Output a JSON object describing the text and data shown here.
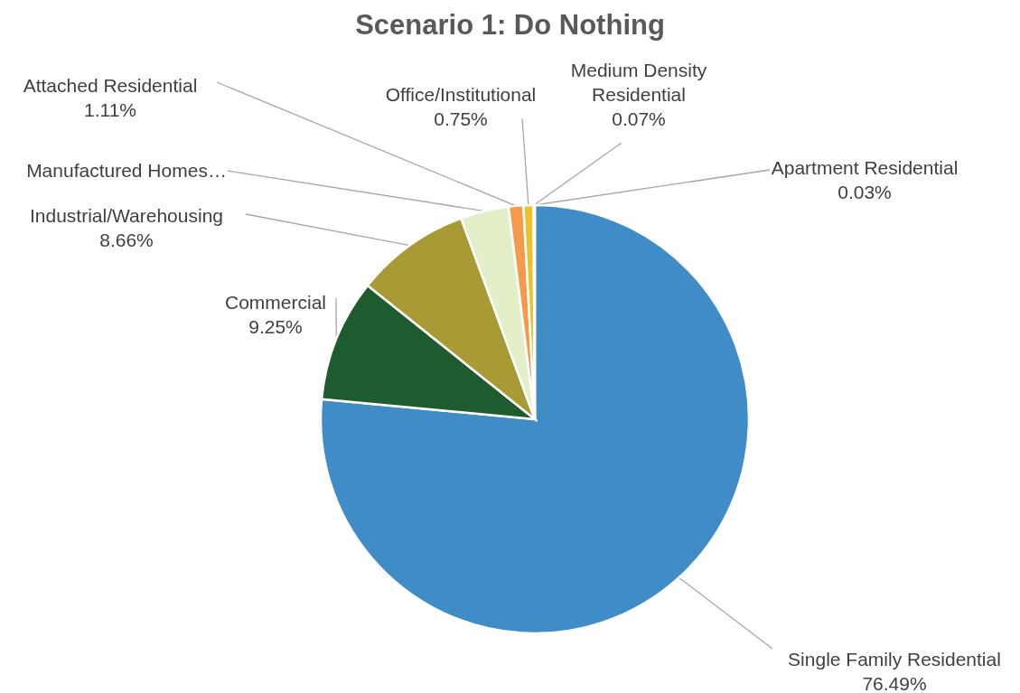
{
  "chart_data": {
    "type": "pie",
    "title": "Scenario 1: Do Nothing",
    "categories": [
      "Single Family Residential",
      "Commercial",
      "Industrial/Warehousing",
      "Manufactured Homes…",
      "Attached Residential",
      "Office/Institutional",
      "Medium Density Residential",
      "Apartment Residential"
    ],
    "values": [
      76.49,
      9.25,
      8.66,
      3.64,
      1.11,
      0.75,
      0.07,
      0.03
    ],
    "value_labels": [
      "76.49%",
      "9.25%",
      "8.66%",
      null,
      "1.11%",
      "0.75%",
      "0.07%",
      "0.03%"
    ],
    "colors": [
      "#3f8cc7",
      "#1e5b2e",
      "#a89a34",
      "#e2efc8",
      "#f59a4a",
      "#ecc12c",
      "#7f7f7f",
      "#255e91"
    ],
    "legend": false
  }
}
